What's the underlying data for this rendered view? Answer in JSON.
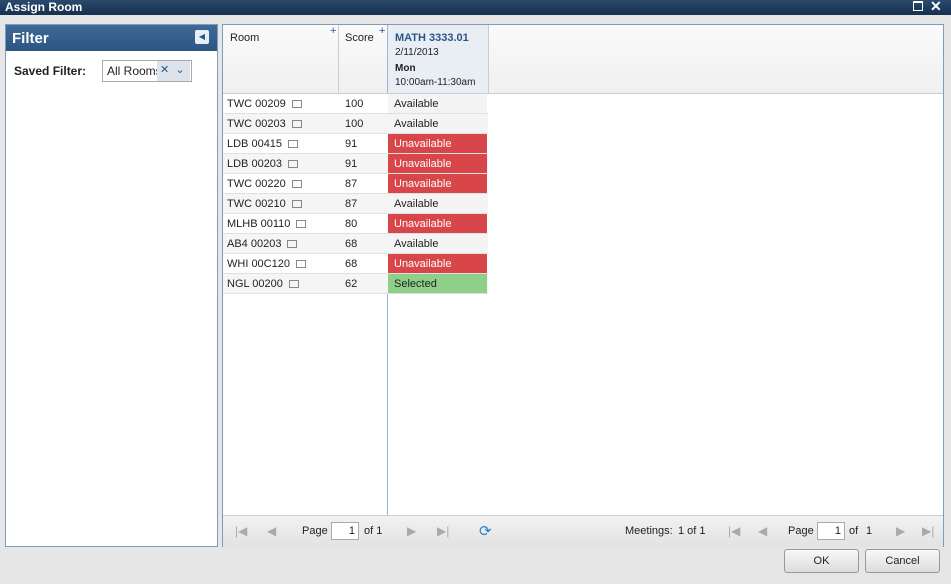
{
  "window": {
    "title": "Assign Room"
  },
  "filter": {
    "title": "Filter",
    "saved_filter_label": "Saved Filter:",
    "saved_filter_value": "All Rooms"
  },
  "grid": {
    "columns": [
      "Room",
      "Score"
    ],
    "meeting": {
      "course": "MATH 3333.01",
      "date": "2/11/2013",
      "day": "Mon",
      "time": "10:00am-11:30am"
    },
    "rows": [
      {
        "room": "TWC 00209",
        "score": 100,
        "status": "Available",
        "color": "#f4f4f4"
      },
      {
        "room": "TWC 00203",
        "score": 100,
        "status": "Available",
        "color": "#f4f4f4"
      },
      {
        "room": "LDB 00415",
        "score": 91,
        "status": "Unavailable",
        "color": "#d9464a"
      },
      {
        "room": "LDB 00203",
        "score": 91,
        "status": "Unavailable",
        "color": "#d9464a"
      },
      {
        "room": "TWC 00220",
        "score": 87,
        "status": "Unavailable",
        "color": "#d9464a"
      },
      {
        "room": "TWC 00210",
        "score": 87,
        "status": "Available",
        "color": "#f4f4f4"
      },
      {
        "room": "MLHB 00110",
        "score": 80,
        "status": "Unavailable",
        "color": "#d9464a"
      },
      {
        "room": "AB4 00203",
        "score": 68,
        "status": "Available",
        "color": "#f4f4f4"
      },
      {
        "room": "WHI 00C120",
        "score": 68,
        "status": "Unavailable",
        "color": "#d9464a"
      },
      {
        "room": "NGL 00200",
        "score": 62,
        "status": "Selected",
        "color": "#8ed08a"
      }
    ]
  },
  "pager": {
    "page_label": "Page",
    "page": "1",
    "of_total": "of 1",
    "meetings_label": "Meetings:",
    "meetings_value": "1 of 1",
    "page_label_2": "Page",
    "page_2": "1",
    "of_2": "of",
    "total_2": "1"
  },
  "buttons": {
    "ok": "OK",
    "cancel": "Cancel"
  }
}
